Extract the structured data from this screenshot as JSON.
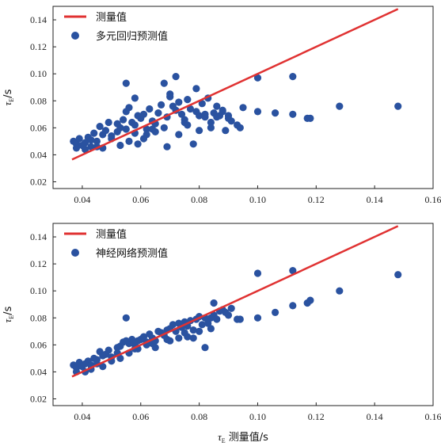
{
  "chart_data": [
    {
      "type": "scatter",
      "ylabel": "τE/s",
      "xlim": [
        0.03,
        0.16
      ],
      "ylim": [
        0.015,
        0.15
      ],
      "xticks": [
        "0.04",
        "0.06",
        "0.08",
        "0.10",
        "0.12",
        "0.14",
        "0.16"
      ],
      "yticks": [
        "0.02",
        "0.04",
        "0.06",
        "0.08",
        "0.10",
        "0.12",
        "0.14"
      ],
      "legend_position": "top-left",
      "colors": {
        "line": "#e03232",
        "points": "#2a52a0"
      },
      "series": [
        {
          "name": "测量值",
          "type": "line",
          "x": [
            0.0365,
            0.148
          ],
          "y": [
            0.0365,
            0.148
          ]
        },
        {
          "name": "多元回归预测值",
          "type": "scatter",
          "x": [
            0.037,
            0.038,
            0.039,
            0.04,
            0.041,
            0.042,
            0.043,
            0.044,
            0.045,
            0.046,
            0.047,
            0.048,
            0.049,
            0.05,
            0.052,
            0.053,
            0.054,
            0.055,
            0.056,
            0.057,
            0.058,
            0.059,
            0.06,
            0.061,
            0.062,
            0.063,
            0.064,
            0.065,
            0.066,
            0.067,
            0.068,
            0.069,
            0.07,
            0.071,
            0.072,
            0.073,
            0.074,
            0.075,
            0.076,
            0.077,
            0.078,
            0.079,
            0.08,
            0.081,
            0.082,
            0.083,
            0.084,
            0.085,
            0.086,
            0.087,
            0.088,
            0.089,
            0.09,
            0.091,
            0.093,
            0.094,
            0.1,
            0.106,
            0.112,
            0.117,
            0.118,
            0.128,
            0.148,
            0.055,
            0.058,
            0.068,
            0.072,
            0.1,
            0.112,
            0.041,
            0.043,
            0.047,
            0.05,
            0.053,
            0.056,
            0.059,
            0.062,
            0.065,
            0.069,
            0.073,
            0.076,
            0.08,
            0.084,
            0.086,
            0.088,
            0.09,
            0.095,
            0.038,
            0.045,
            0.052,
            0.058,
            0.064,
            0.07,
            0.075,
            0.079,
            0.082,
            0.055,
            0.061
          ],
          "y": [
            0.05,
            0.048,
            0.052,
            0.047,
            0.049,
            0.053,
            0.046,
            0.056,
            0.05,
            0.061,
            0.055,
            0.058,
            0.064,
            0.052,
            0.057,
            0.06,
            0.066,
            0.072,
            0.075,
            0.064,
            0.062,
            0.069,
            0.067,
            0.07,
            0.059,
            0.074,
            0.065,
            0.063,
            0.071,
            0.077,
            0.06,
            0.068,
            0.085,
            0.076,
            0.073,
            0.079,
            0.07,
            0.066,
            0.081,
            0.074,
            0.048,
            0.072,
            0.069,
            0.078,
            0.068,
            0.082,
            0.064,
            0.071,
            0.076,
            0.069,
            0.073,
            0.058,
            0.069,
            0.065,
            0.062,
            0.06,
            0.072,
            0.071,
            0.07,
            0.067,
            0.067,
            0.076,
            0.076,
            0.093,
            0.082,
            0.093,
            0.098,
            0.097,
            0.098,
            0.044,
            0.051,
            0.045,
            0.054,
            0.047,
            0.05,
            0.048,
            0.055,
            0.057,
            0.046,
            0.055,
            0.062,
            0.058,
            0.06,
            0.068,
            0.072,
            0.067,
            0.075,
            0.045,
            0.046,
            0.063,
            0.056,
            0.059,
            0.083,
            0.064,
            0.089,
            0.07,
            0.059,
            0.052
          ]
        }
      ]
    },
    {
      "type": "scatter",
      "xlabel": "τE 测量值/s",
      "ylabel": "τE/s",
      "xlim": [
        0.03,
        0.16
      ],
      "ylim": [
        0.015,
        0.15
      ],
      "xticks": [
        "0.04",
        "0.06",
        "0.08",
        "0.10",
        "0.12",
        "0.14",
        "0.16"
      ],
      "yticks": [
        "0.02",
        "0.04",
        "0.06",
        "0.08",
        "0.10",
        "0.12",
        "0.14"
      ],
      "legend_position": "top-left",
      "colors": {
        "line": "#e03232",
        "points": "#2a52a0"
      },
      "series": [
        {
          "name": "测量值",
          "type": "line",
          "x": [
            0.0365,
            0.148
          ],
          "y": [
            0.0365,
            0.148
          ]
        },
        {
          "name": "神经网络预测值",
          "type": "scatter",
          "x": [
            0.037,
            0.038,
            0.039,
            0.04,
            0.041,
            0.042,
            0.043,
            0.044,
            0.045,
            0.046,
            0.047,
            0.048,
            0.049,
            0.05,
            0.052,
            0.053,
            0.054,
            0.055,
            0.056,
            0.057,
            0.058,
            0.059,
            0.06,
            0.061,
            0.062,
            0.063,
            0.064,
            0.065,
            0.066,
            0.067,
            0.068,
            0.069,
            0.07,
            0.071,
            0.072,
            0.073,
            0.074,
            0.075,
            0.076,
            0.077,
            0.078,
            0.079,
            0.08,
            0.081,
            0.082,
            0.083,
            0.084,
            0.085,
            0.086,
            0.087,
            0.088,
            0.089,
            0.09,
            0.091,
            0.093,
            0.094,
            0.1,
            0.106,
            0.112,
            0.117,
            0.118,
            0.128,
            0.148,
            0.1,
            0.112,
            0.055,
            0.085,
            0.078,
            0.082,
            0.041,
            0.043,
            0.047,
            0.05,
            0.053,
            0.056,
            0.059,
            0.062,
            0.065,
            0.069,
            0.073,
            0.076,
            0.08,
            0.084,
            0.038,
            0.045,
            0.052,
            0.058,
            0.064,
            0.07,
            0.075
          ],
          "y": [
            0.045,
            0.043,
            0.047,
            0.044,
            0.046,
            0.048,
            0.045,
            0.05,
            0.049,
            0.055,
            0.052,
            0.053,
            0.056,
            0.051,
            0.058,
            0.059,
            0.062,
            0.063,
            0.061,
            0.064,
            0.06,
            0.063,
            0.064,
            0.066,
            0.062,
            0.068,
            0.065,
            0.063,
            0.07,
            0.069,
            0.067,
            0.071,
            0.072,
            0.075,
            0.07,
            0.076,
            0.073,
            0.077,
            0.074,
            0.078,
            0.071,
            0.079,
            0.081,
            0.075,
            0.08,
            0.076,
            0.08,
            0.082,
            0.079,
            0.085,
            0.086,
            0.084,
            0.082,
            0.087,
            0.079,
            0.079,
            0.08,
            0.084,
            0.089,
            0.091,
            0.093,
            0.1,
            0.112,
            0.113,
            0.115,
            0.08,
            0.091,
            0.065,
            0.058,
            0.04,
            0.042,
            0.044,
            0.048,
            0.05,
            0.054,
            0.057,
            0.06,
            0.058,
            0.064,
            0.065,
            0.066,
            0.07,
            0.072,
            0.04,
            0.046,
            0.054,
            0.057,
            0.061,
            0.063,
            0.069
          ]
        }
      ]
    }
  ]
}
